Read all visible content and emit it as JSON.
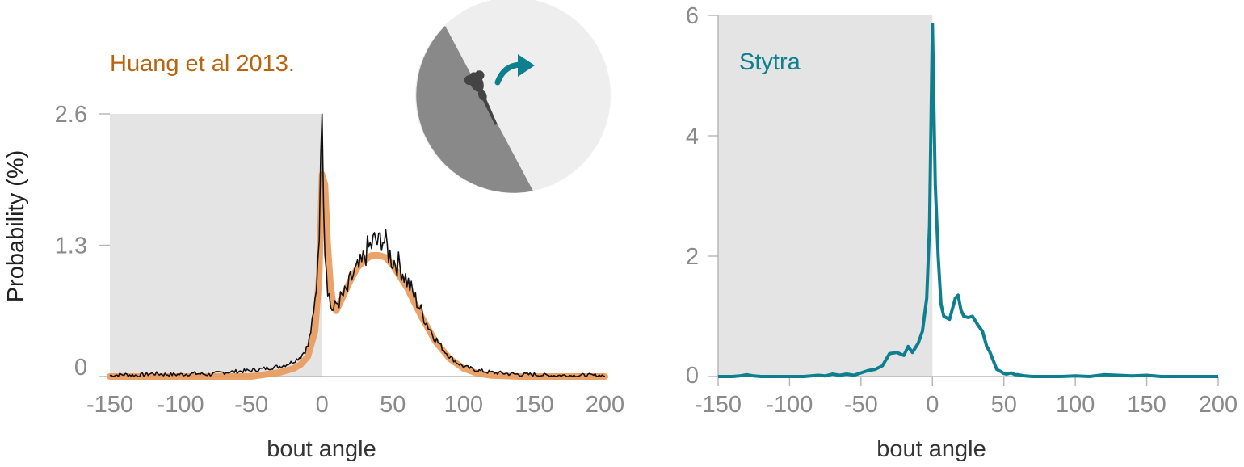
{
  "colors": {
    "shade": "#e4e4e4",
    "axis": "#b8b8b8",
    "tick_text": "#8a8a8a",
    "raw_line": "#111111",
    "fit_line": "#e9995a",
    "huang_text": "#b8650f",
    "stytra": "#0e7f8f",
    "dial_dark": "#898989",
    "dial_light": "#eeeeee",
    "fish": "#444444"
  },
  "icons": {
    "turn_arrow": "curved-arrow-right-icon",
    "fish": "fish-larva-icon"
  },
  "chart_data": [
    {
      "type": "line",
      "annotation": "Huang et al 2013.",
      "xlabel": "bout angle",
      "ylabel": "Probability (%)",
      "xlim": [
        -150,
        200
      ],
      "ylim": [
        0,
        2.6
      ],
      "xticks": [
        "-150",
        "-100",
        "-50",
        "0",
        "50",
        "100",
        "150",
        "200"
      ],
      "yticks": [
        "0",
        "1.3",
        "2.6"
      ],
      "shaded_range": [
        -150,
        0
      ],
      "series": [
        {
          "style": "raw",
          "x": [
            -150,
            -140,
            -130,
            -120,
            -110,
            -100,
            -90,
            -80,
            -70,
            -60,
            -50,
            -40,
            -30,
            -25,
            -20,
            -15,
            -10,
            -8,
            -6,
            -4,
            -2,
            -1,
            0,
            1,
            2,
            4,
            6,
            8,
            10,
            12,
            15,
            18,
            20,
            22,
            25,
            28,
            30,
            32,
            35,
            38,
            40,
            42,
            45,
            48,
            50,
            55,
            60,
            65,
            70,
            75,
            80,
            85,
            90,
            95,
            100,
            110,
            120,
            130,
            140,
            150,
            160,
            170,
            180,
            190,
            200
          ],
          "y": [
            0.01,
            0.02,
            0.01,
            0.03,
            0.02,
            0.02,
            0.03,
            0.02,
            0.04,
            0.05,
            0.06,
            0.08,
            0.1,
            0.12,
            0.15,
            0.2,
            0.3,
            0.45,
            0.6,
            0.9,
            1.5,
            2.0,
            2.6,
            1.9,
            1.3,
            0.9,
            0.7,
            0.65,
            0.72,
            0.75,
            0.8,
            0.85,
            0.95,
            1.0,
            1.05,
            1.1,
            1.2,
            1.25,
            1.3,
            1.35,
            1.3,
            1.4,
            1.3,
            1.2,
            1.15,
            1.1,
            0.95,
            0.8,
            0.65,
            0.5,
            0.38,
            0.28,
            0.2,
            0.14,
            0.1,
            0.06,
            0.04,
            0.03,
            0.02,
            0.02,
            0.01,
            0.01,
            0.01,
            0.01,
            0.01
          ]
        },
        {
          "style": "fit",
          "x": [
            -150,
            -100,
            -50,
            -40,
            -30,
            -20,
            -15,
            -10,
            -5,
            -2,
            0,
            2,
            4,
            6,
            8,
            10,
            15,
            20,
            25,
            30,
            35,
            40,
            45,
            50,
            60,
            70,
            80,
            90,
            100,
            110,
            120,
            140,
            160,
            180,
            200
          ],
          "y": [
            0.0,
            0.0,
            0.0,
            0.02,
            0.04,
            0.08,
            0.12,
            0.2,
            0.45,
            1.0,
            2.0,
            1.9,
            1.3,
            0.9,
            0.7,
            0.65,
            0.8,
            0.95,
            1.08,
            1.15,
            1.2,
            1.2,
            1.18,
            1.1,
            0.88,
            0.6,
            0.35,
            0.18,
            0.08,
            0.03,
            0.01,
            0.0,
            0.0,
            0.0,
            0.0
          ]
        }
      ]
    },
    {
      "type": "line",
      "annotation": "Stytra",
      "xlabel": "bout angle",
      "xlim": [
        -150,
        200
      ],
      "ylim": [
        0,
        6
      ],
      "xticks": [
        "-150",
        "-100",
        "-50",
        "0",
        "50",
        "100",
        "150",
        "200"
      ],
      "yticks": [
        "0",
        "2",
        "4",
        "6"
      ],
      "shaded_range": [
        -150,
        0
      ],
      "series": [
        {
          "style": "stytra",
          "x": [
            -150,
            -140,
            -135,
            -130,
            -125,
            -120,
            -110,
            -100,
            -90,
            -85,
            -80,
            -75,
            -70,
            -65,
            -60,
            -55,
            -50,
            -45,
            -40,
            -35,
            -30,
            -25,
            -20,
            -17,
            -14,
            -10,
            -7,
            -4,
            -2,
            0,
            2,
            4,
            6,
            8,
            12,
            16,
            18,
            20,
            22,
            25,
            28,
            32,
            35,
            38,
            40,
            45,
            48,
            50,
            52,
            55,
            58,
            60,
            62,
            65,
            70,
            75,
            80,
            90,
            100,
            110,
            120,
            130,
            140,
            150,
            160,
            170,
            180,
            190,
            200
          ],
          "y": [
            0.0,
            0.0,
            0.01,
            0.03,
            0.01,
            0.0,
            0.0,
            0.0,
            0.0,
            0.01,
            0.02,
            0.01,
            0.04,
            0.02,
            0.04,
            0.02,
            0.06,
            0.1,
            0.12,
            0.18,
            0.38,
            0.4,
            0.35,
            0.5,
            0.4,
            0.55,
            0.75,
            1.3,
            2.5,
            5.85,
            3.2,
            2.0,
            1.2,
            1.0,
            0.95,
            1.3,
            1.35,
            1.1,
            1.0,
            0.98,
            1.0,
            0.85,
            0.75,
            0.5,
            0.42,
            0.12,
            0.08,
            0.05,
            0.04,
            0.06,
            0.03,
            0.03,
            0.02,
            0.01,
            0.0,
            0.0,
            0.0,
            0.0,
            0.01,
            0.0,
            0.03,
            0.02,
            0.01,
            0.02,
            0.0,
            0.0,
            0.0,
            0.0,
            0.0
          ]
        }
      ]
    }
  ]
}
